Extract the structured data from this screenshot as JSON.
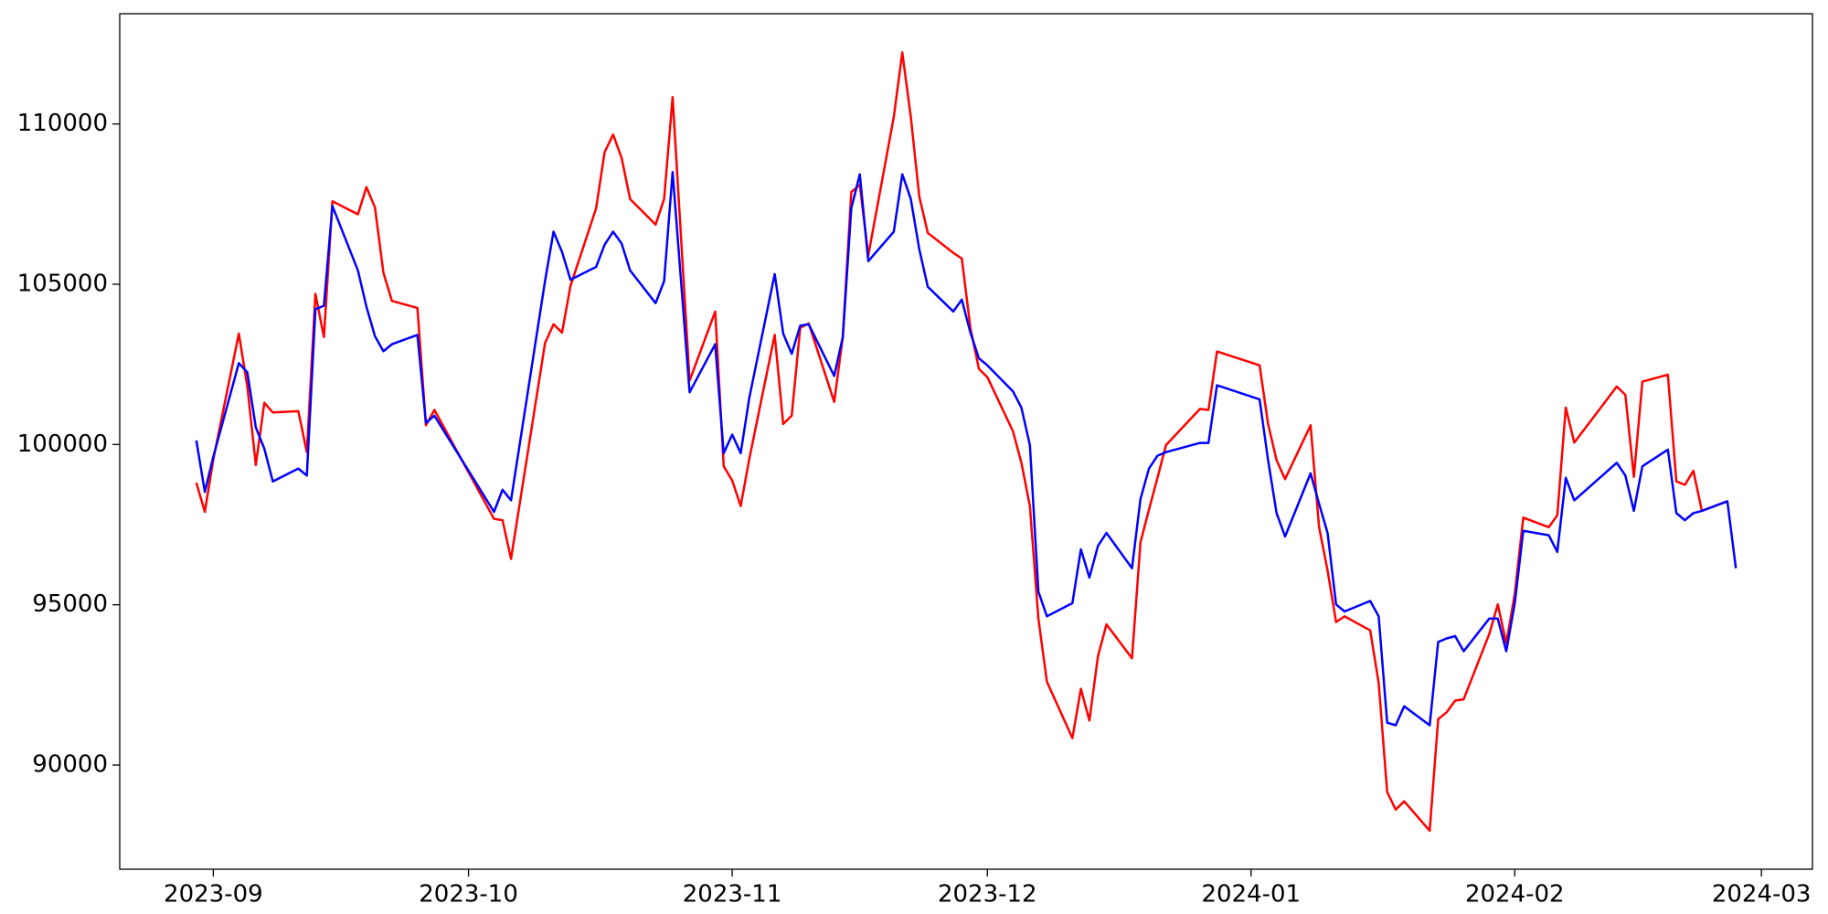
{
  "chart_data": {
    "type": "line",
    "x": [
      "2023-08-30",
      "2023-08-31",
      "2023-09-01",
      "2023-09-04",
      "2023-09-05",
      "2023-09-06",
      "2023-09-07",
      "2023-09-08",
      "2023-09-11",
      "2023-09-12",
      "2023-09-13",
      "2023-09-14",
      "2023-09-15",
      "2023-09-18",
      "2023-09-19",
      "2023-09-20",
      "2023-09-21",
      "2023-09-22",
      "2023-09-25",
      "2023-09-26",
      "2023-09-27",
      "2023-10-04",
      "2023-10-05",
      "2023-10-06",
      "2023-10-10",
      "2023-10-11",
      "2023-10-12",
      "2023-10-13",
      "2023-10-16",
      "2023-10-17",
      "2023-10-18",
      "2023-10-19",
      "2023-10-20",
      "2023-10-23",
      "2023-10-24",
      "2023-10-25",
      "2023-10-27",
      "2023-10-30",
      "2023-10-31",
      "2023-11-01",
      "2023-11-02",
      "2023-11-03",
      "2023-11-06",
      "2023-11-07",
      "2023-11-08",
      "2023-11-09",
      "2023-11-10",
      "2023-11-13",
      "2023-11-14",
      "2023-11-15",
      "2023-11-16",
      "2023-11-17",
      "2023-11-20",
      "2023-11-21",
      "2023-11-22",
      "2023-11-23",
      "2023-11-24",
      "2023-11-27",
      "2023-11-28",
      "2023-11-29",
      "2023-11-30",
      "2023-12-01",
      "2023-12-04",
      "2023-12-05",
      "2023-12-06",
      "2023-12-07",
      "2023-12-08",
      "2023-12-11",
      "2023-12-12",
      "2023-12-13",
      "2023-12-14",
      "2023-12-15",
      "2023-12-18",
      "2023-12-19",
      "2023-12-20",
      "2023-12-21",
      "2023-12-22",
      "2023-12-26",
      "2023-12-27",
      "2023-12-28",
      "2024-01-02",
      "2024-01-03",
      "2024-01-04",
      "2024-01-05",
      "2024-01-08",
      "2024-01-09",
      "2024-01-10",
      "2024-01-11",
      "2024-01-12",
      "2024-01-15",
      "2024-01-16",
      "2024-01-17",
      "2024-01-18",
      "2024-01-19",
      "2024-01-22",
      "2024-01-23",
      "2024-01-24",
      "2024-01-25",
      "2024-01-26",
      "2024-01-29",
      "2024-01-30",
      "2024-01-31",
      "2024-02-01",
      "2024-02-02",
      "2024-02-05",
      "2024-02-06",
      "2024-02-07",
      "2024-02-08",
      "2024-02-13",
      "2024-02-14",
      "2024-02-15",
      "2024-02-16",
      "2024-02-19",
      "2024-02-20",
      "2024-02-21",
      "2024-02-22",
      "2024-02-23",
      "2024-02-26",
      "2024-02-27"
    ],
    "series": [
      {
        "color": "red",
        "values": [
          98810,
          97900,
          99540,
          103460,
          101810,
          99360,
          101300,
          101000,
          101040,
          99760,
          104700,
          103350,
          107590,
          107180,
          108030,
          107400,
          105360,
          104480,
          104260,
          100600,
          101080,
          97680,
          97640,
          96430,
          103160,
          103750,
          103490,
          104950,
          107370,
          109120,
          109670,
          108940,
          107660,
          106860,
          107660,
          110840,
          101990,
          104150,
          99320,
          98880,
          98080,
          99540,
          103420,
          100640,
          100900,
          103640,
          103780,
          101330,
          103350,
          107880,
          108100,
          105900,
          110220,
          112230,
          110220,
          107730,
          106600,
          105980,
          105800,
          103640,
          102360,
          102100,
          100420,
          99430,
          98080,
          94570,
          92600,
          90840,
          92380,
          91390,
          93400,
          94390,
          93330,
          96950,
          97970,
          98960,
          99980,
          101110,
          101080,
          102900,
          102470,
          100640,
          99510,
          98920,
          100600,
          97420,
          96070,
          94460,
          94640,
          94200,
          92560,
          89160,
          88610,
          88870,
          87950,
          91430,
          91650,
          92010,
          92050,
          94090,
          95010,
          93800,
          95340,
          97720,
          97420,
          97790,
          101150,
          100060,
          101810,
          101550,
          98990,
          101960,
          102180,
          98850,
          98740,
          99180,
          97930,
          98230,
          null
        ]
      },
      {
        "color": "blue",
        "values": [
          100130,
          98520,
          99620,
          102540,
          102250,
          100530,
          99870,
          98850,
          99250,
          99030,
          104220,
          104330,
          107440,
          105430,
          104300,
          103380,
          102910,
          103130,
          103420,
          100680,
          100900,
          97900,
          98590,
          98260,
          105100,
          106640,
          106010,
          105140,
          105540,
          106230,
          106640,
          106270,
          105430,
          104410,
          105100,
          108500,
          101630,
          103130,
          99730,
          100310,
          99730,
          101440,
          105320,
          103460,
          102830,
          103710,
          103750,
          102140,
          103350,
          107370,
          108430,
          105720,
          106640,
          108430,
          107660,
          106090,
          104920,
          104150,
          104520,
          103490,
          102690,
          102470,
          101660,
          101150,
          99980,
          95410,
          94640,
          95050,
          96730,
          95850,
          96840,
          97240,
          96140,
          98300,
          99250,
          99650,
          99760,
          100050,
          100050,
          101850,
          101410,
          99510,
          97860,
          97130,
          99100,
          98150,
          97240,
          95010,
          94790,
          95120,
          94640,
          91320,
          91240,
          91830,
          91240,
          93840,
          93950,
          94020,
          93550,
          94570,
          94570,
          93550,
          95050,
          97310,
          97170,
          96650,
          98960,
          98260,
          99430,
          99030,
          97930,
          99320,
          99840,
          97860,
          97640,
          97860,
          97930,
          98230,
          96140
        ]
      }
    ],
    "xlim": [
      "2023-08-21",
      "2024-03-07"
    ],
    "xticks": [
      {
        "value": "2023-09-01",
        "label": "2023-09"
      },
      {
        "value": "2023-10-01",
        "label": "2023-10"
      },
      {
        "value": "2023-11-01",
        "label": "2023-11"
      },
      {
        "value": "2023-12-01",
        "label": "2023-12"
      },
      {
        "value": "2024-01-01",
        "label": "2024-01"
      },
      {
        "value": "2024-02-01",
        "label": "2024-02"
      },
      {
        "value": "2024-03-01",
        "label": "2024-03"
      }
    ],
    "ylim": [
      86750,
      113440
    ],
    "yticks": [
      90000,
      95000,
      100000,
      105000,
      110000
    ]
  }
}
